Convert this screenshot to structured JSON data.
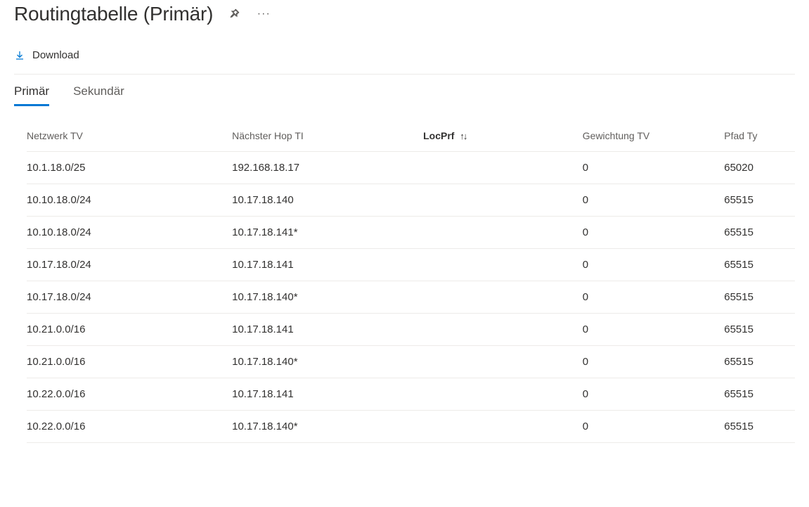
{
  "header": {
    "title": "Routingtabelle (Primär)"
  },
  "toolbar": {
    "download_label": "Download"
  },
  "tabs": {
    "items": [
      {
        "label": "Primär",
        "active": true
      },
      {
        "label": "Sekundär",
        "active": false
      }
    ]
  },
  "table": {
    "columns": [
      {
        "label": "Netzwerk TV",
        "key": "network",
        "sortable": false
      },
      {
        "label": "Nächster Hop TI",
        "key": "nexthop",
        "sortable": false
      },
      {
        "label": "LocPrf",
        "key": "locprf",
        "sortable": true
      },
      {
        "label": "Gewichtung TV",
        "key": "weight",
        "sortable": false
      },
      {
        "label": "Pfad Ty",
        "key": "path",
        "sortable": false
      }
    ],
    "rows": [
      {
        "network": "10.1.18.0/25",
        "nexthop": "192.168.18.17",
        "locprf": "",
        "weight": "0",
        "path": "65020"
      },
      {
        "network": "10.10.18.0/24",
        "nexthop": "10.17.18.140",
        "locprf": "",
        "weight": "0",
        "path": "65515"
      },
      {
        "network": "10.10.18.0/24",
        "nexthop": "10.17.18.141*",
        "locprf": "",
        "weight": "0",
        "path": "65515"
      },
      {
        "network": "10.17.18.0/24",
        "nexthop": "10.17.18.141",
        "locprf": "",
        "weight": "0",
        "path": "65515"
      },
      {
        "network": "10.17.18.0/24",
        "nexthop": "10.17.18.140*",
        "locprf": "",
        "weight": "0",
        "path": "65515"
      },
      {
        "network": "10.21.0.0/16",
        "nexthop": "10.17.18.141",
        "locprf": "",
        "weight": "0",
        "path": "65515"
      },
      {
        "network": "10.21.0.0/16",
        "nexthop": "10.17.18.140*",
        "locprf": "",
        "weight": "0",
        "path": "65515"
      },
      {
        "network": "10.22.0.0/16",
        "nexthop": "10.17.18.141",
        "locprf": "",
        "weight": "0",
        "path": "65515"
      },
      {
        "network": "10.22.0.0/16",
        "nexthop": "10.17.18.140*",
        "locprf": "",
        "weight": "0",
        "path": "65515"
      }
    ]
  },
  "colors": {
    "accent": "#0078d4",
    "text_primary": "#323130",
    "text_secondary": "#605e5c",
    "border": "#edebe9",
    "background": "#ffffff"
  }
}
